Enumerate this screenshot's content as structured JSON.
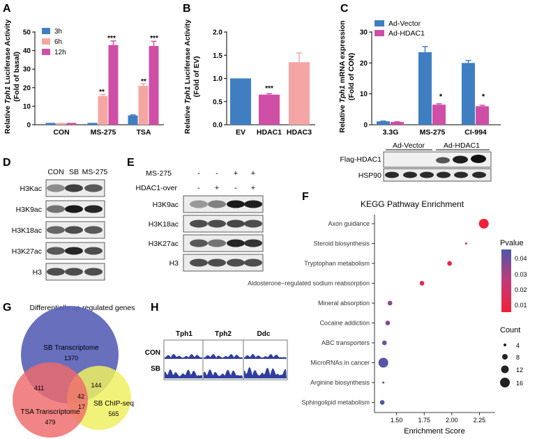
{
  "panel_labels": {
    "A": "A",
    "B": "B",
    "C": "C",
    "D": "D",
    "E": "E",
    "F": "F",
    "G": "G",
    "H": "H"
  },
  "colors": {
    "blue": "#3f7fc1",
    "pink": "#f4a7a2",
    "magenta": "#cf4fa6",
    "light_red": "#f4a6a6",
    "venn_blue": "#5d64b8",
    "venn_red": "#ee6a6a",
    "venn_yellow": "#eef061",
    "dot_high": "#ee2a3a",
    "dot_mid": "#c23a79",
    "dot_low": "#4a56a6"
  },
  "chart_a": {
    "ylabel_1": "Relative ",
    "ylabel_gene": "Tph1",
    "ylabel_2": " Luciferase Activity",
    "ylabel_sub": "(Fold of basal)",
    "categories": [
      "CON",
      "MS-275",
      "TSA"
    ],
    "series": [
      {
        "name": "3h",
        "values": [
          1,
          1,
          5
        ]
      },
      {
        "name": "6h",
        "values": [
          1,
          15.5,
          21
        ]
      },
      {
        "name": "12h",
        "values": [
          1,
          43,
          42.5
        ]
      }
    ],
    "errors": [
      [
        0,
        0,
        0.3
      ],
      [
        0,
        0.8,
        1.2
      ],
      [
        0,
        2.2,
        2.5
      ]
    ],
    "ylim": [
      0,
      50
    ],
    "yticks": [
      "0",
      "10",
      "20",
      "30",
      "40",
      "50"
    ],
    "stars": [
      "**",
      "***",
      "**",
      "***"
    ]
  },
  "chart_b": {
    "ylabel_1": "Relative ",
    "ylabel_gene": "Tph1",
    "ylabel_2": " Luciferase Activity",
    "ylabel_sub": "(Fold of EV)",
    "categories": [
      "EV",
      "HDAC1",
      "HDAC3"
    ],
    "values": [
      1.0,
      0.65,
      1.35
    ],
    "errors": [
      0,
      0.02,
      0.2
    ],
    "ylim": [
      0,
      2.0
    ],
    "yticks": [
      "0.0",
      "0.5",
      "1.0",
      "1.5",
      "2.0"
    ],
    "stars": "***"
  },
  "chart_c": {
    "ylabel_1": "Relative ",
    "ylabel_gene": "Tph1",
    "ylabel_2": " mRNA expression",
    "ylabel_sub": "(Fold of CON)",
    "categories": [
      "3.3G",
      "MS-275",
      "CI-994"
    ],
    "series": [
      {
        "name": "Ad-Vector",
        "values": [
          1.1,
          23.5,
          20
        ]
      },
      {
        "name": "Ad-HDAC1",
        "values": [
          0.9,
          6.5,
          6
        ]
      }
    ],
    "errors": [
      [
        0.1,
        1.8,
        0.8
      ],
      [
        0.1,
        0.3,
        0.3
      ]
    ],
    "ylim": [
      0,
      30
    ],
    "yticks": [
      "0",
      "10",
      "20",
      "30"
    ],
    "stars": [
      "*",
      "*"
    ],
    "blot_groups": [
      "Ad-Vector",
      "Ad-HDAC1"
    ],
    "blot_rows": [
      "Flag-HDAC1",
      "HSP90"
    ]
  },
  "blot_d": {
    "columns": [
      "CON",
      "SB",
      "MS-275"
    ],
    "rows": [
      "H3Kac",
      "H3K9ac",
      "H3K18ac",
      "H3K27ac",
      "H3"
    ]
  },
  "blot_e": {
    "treatments": [
      {
        "name": "MS-275",
        "marks": [
          "-",
          "-",
          "+",
          "+"
        ]
      },
      {
        "name": "HDAC1-over",
        "marks": [
          "-",
          "+",
          "-",
          "+"
        ]
      }
    ],
    "rows": [
      "H3K9ac",
      "H3K18ac",
      "H3K27ac",
      "H3"
    ]
  },
  "chart_data": {
    "type": "scatter",
    "title": "KEGG Pathway Enrichment",
    "xlabel": "Enrichment Score",
    "xlim": [
      1.3,
      2.38
    ],
    "xticks": [
      "1.50",
      "1.75",
      "2.00",
      "2.25"
    ],
    "pathways": [
      {
        "name": "Axon guidance",
        "score": 2.29,
        "count": 16,
        "pvalue": 0.005
      },
      {
        "name": "Steroid biosynthesis",
        "score": 2.13,
        "count": 4,
        "pvalue": 0.006
      },
      {
        "name": "Tryptophan metabolism",
        "score": 1.98,
        "count": 8,
        "pvalue": 0.008
      },
      {
        "name": "Aldosterone−regulated sodium reabsorption",
        "score": 1.73,
        "count": 8,
        "pvalue": 0.012
      },
      {
        "name": "Mineral absorption",
        "score": 1.44,
        "count": 8,
        "pvalue": 0.036
      },
      {
        "name": "Cocaine addiction",
        "score": 1.42,
        "count": 8,
        "pvalue": 0.037
      },
      {
        "name": "ABC transporters",
        "score": 1.39,
        "count": 8,
        "pvalue": 0.04
      },
      {
        "name": "MicroRNAs in cancer",
        "score": 1.38,
        "count": 16,
        "pvalue": 0.045
      },
      {
        "name": "Arginine biosynthesis",
        "score": 1.38,
        "count": 4,
        "pvalue": 0.045
      },
      {
        "name": "Sphingolipid metabolism",
        "score": 1.37,
        "count": 8,
        "pvalue": 0.047
      }
    ],
    "pvalue_legend": {
      "title": "Pvalue",
      "ticks": [
        "0.04",
        "0.03",
        "0.02",
        "0.01"
      ]
    },
    "count_legend": {
      "title": "Count",
      "values": [
        "4",
        "8",
        "12",
        "16"
      ]
    }
  },
  "venn": {
    "title": "Differentially up-regulated genes",
    "sets": [
      {
        "name": "SB Transcriptome",
        "only": "1370"
      },
      {
        "name": "TSA Transcriptome",
        "only": "479"
      },
      {
        "name": "SB ChIP-seq",
        "only": "565"
      }
    ],
    "overlaps": {
      "sb_tsa": "411",
      "sb_chip": "144",
      "tsa_chip": "17",
      "all": "42"
    }
  },
  "tracks": {
    "genes": [
      "Tph1",
      "Tph2",
      "Ddc"
    ],
    "rows": [
      "CON",
      "SB"
    ]
  }
}
